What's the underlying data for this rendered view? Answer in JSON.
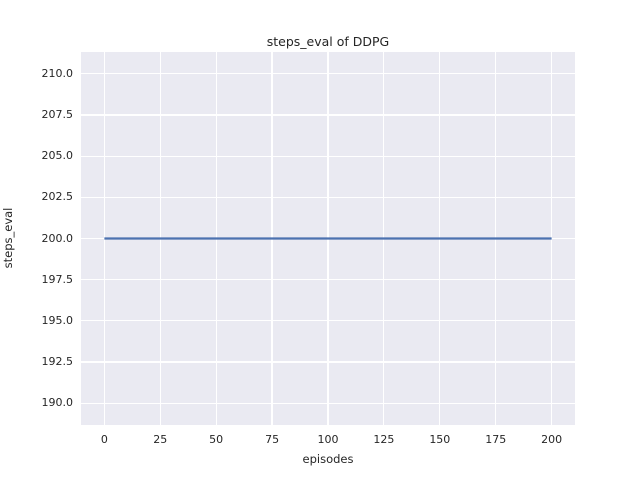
{
  "chart_data": {
    "type": "line",
    "title": "steps_eval of DDPG",
    "xlabel": "episodes",
    "ylabel": "steps_eval",
    "xlim": [
      -10.45,
      210.45
    ],
    "ylim": [
      188.68,
      211.32
    ],
    "x_ticks": [
      0,
      25,
      50,
      75,
      100,
      125,
      150,
      175,
      200
    ],
    "x_tick_labels": [
      "0",
      "25",
      "50",
      "75",
      "100",
      "125",
      "150",
      "175",
      "200"
    ],
    "y_ticks": [
      190.0,
      192.5,
      195.0,
      197.5,
      200.0,
      202.5,
      205.0,
      207.5,
      210.0
    ],
    "y_tick_labels": [
      "190.0",
      "192.5",
      "195.0",
      "197.5",
      "200.0",
      "202.5",
      "205.0",
      "207.5",
      "210.0"
    ],
    "grid": true,
    "legend": "none",
    "plot_background": "#eaeaf2",
    "grid_color": "#ffffff",
    "text_color": "#262626",
    "series": [
      {
        "name": "steps_eval",
        "color": "#4c72b0",
        "line_width": 2.2,
        "x": [
          0,
          200
        ],
        "y": [
          200,
          200
        ]
      }
    ]
  }
}
